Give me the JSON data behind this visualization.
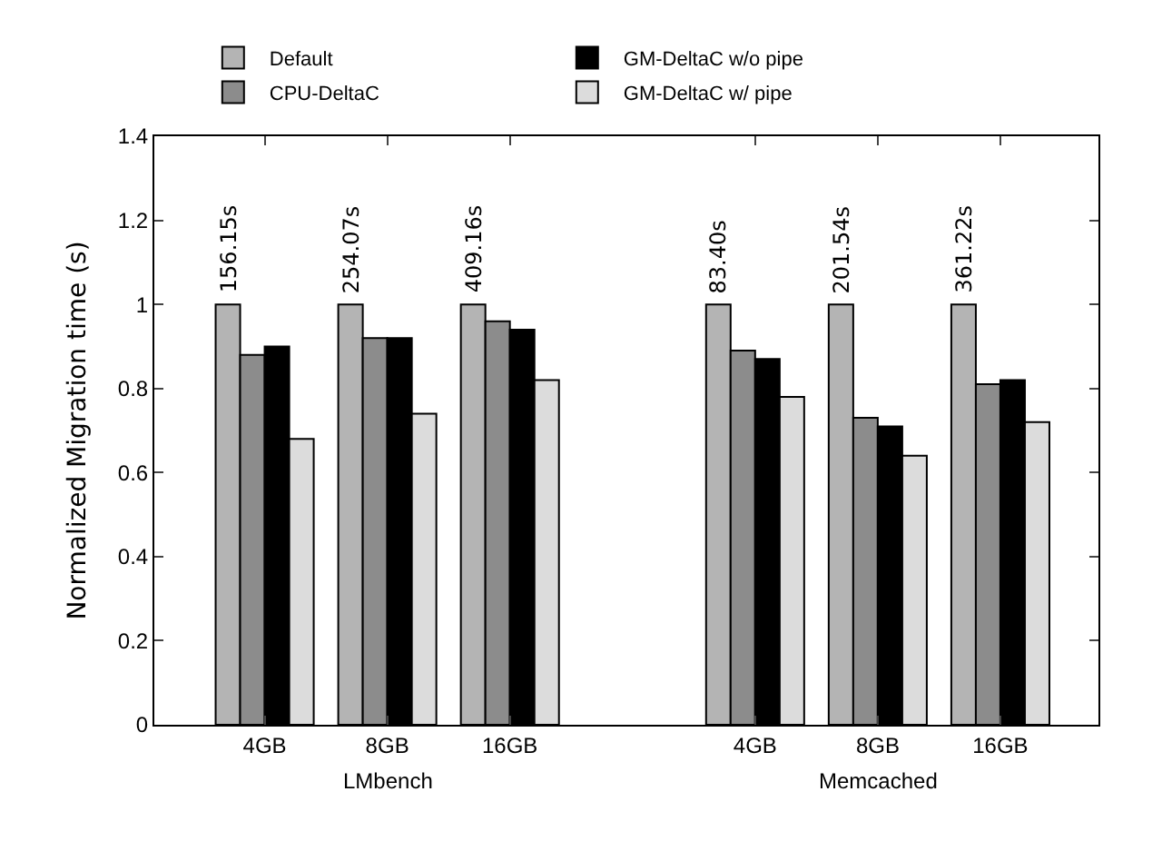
{
  "chart_data": {
    "type": "bar",
    "ylabel": "Normalized Migration time (s)",
    "categories": [
      "4GB",
      "8GB",
      "16GB",
      null,
      "4GB",
      "8GB",
      "16GB"
    ],
    "series": [
      {
        "name": "Default",
        "color": "#b4b4b4",
        "values": [
          1.0,
          1.0,
          1.0,
          null,
          1.0,
          1.0,
          1.0
        ]
      },
      {
        "name": "CPU-DeltaC",
        "color": "#8c8c8c",
        "values": [
          0.88,
          0.92,
          0.96,
          null,
          0.89,
          0.73,
          0.81
        ]
      },
      {
        "name": "GM-DeltaC w/o pipe",
        "color": "#000000",
        "values": [
          0.9,
          0.92,
          0.94,
          null,
          0.87,
          0.71,
          0.82
        ]
      },
      {
        "name": "GM-DeltaC w/ pipe",
        "color": "#dcdcdc",
        "values": [
          0.68,
          0.74,
          0.82,
          null,
          0.78,
          0.64,
          0.72
        ]
      }
    ],
    "annotations": [
      "156.15s",
      "254.07s",
      "409.16s",
      "83.40s",
      "201.54s",
      "361.22s",
      "LMbench",
      "Memcached"
    ],
    "ylim": [
      0,
      1.4
    ],
    "yticks": [
      0,
      0.2,
      0.4,
      0.6,
      0.8,
      1,
      1.2,
      1.4
    ],
    "grid": false,
    "legend": "top"
  }
}
